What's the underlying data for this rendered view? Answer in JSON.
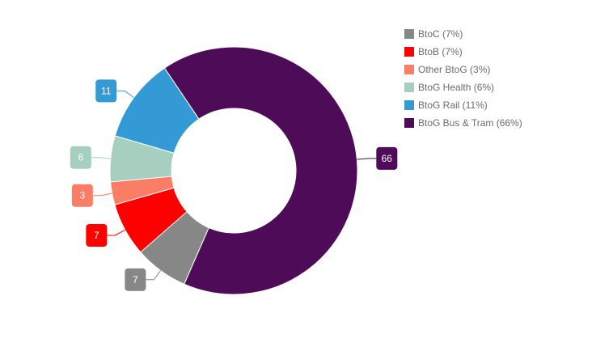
{
  "chart_data": {
    "type": "pie",
    "variant": "donut",
    "title": "",
    "categories": [
      "BtoG Bus & Tram",
      "BtoC",
      "BtoB",
      "Other BtoG",
      "BtoG Health",
      "BtoG Rail"
    ],
    "values": [
      66,
      7,
      7,
      3,
      6,
      11
    ],
    "colors": [
      "#4e0b57",
      "#878787",
      "#ff0000",
      "#f97e65",
      "#a6cfbf",
      "#339ad6"
    ],
    "data_labels": [
      "66",
      "7",
      "7",
      "3",
      "6",
      "11"
    ],
    "legend_position": "top-right"
  },
  "legend": {
    "items": [
      {
        "label": "BtoC (7%)",
        "color": "#878787"
      },
      {
        "label": "BtoB (7%)",
        "color": "#ff0000"
      },
      {
        "label": "Other BtoG (3%)",
        "color": "#f97e65"
      },
      {
        "label": "BtoG Health (6%)",
        "color": "#a6cfbf"
      },
      {
        "label": "BtoG Rail (11%)",
        "color": "#339ad6"
      },
      {
        "label": "BtoG Bus & Tram (66%)",
        "color": "#4e0b57"
      }
    ]
  }
}
